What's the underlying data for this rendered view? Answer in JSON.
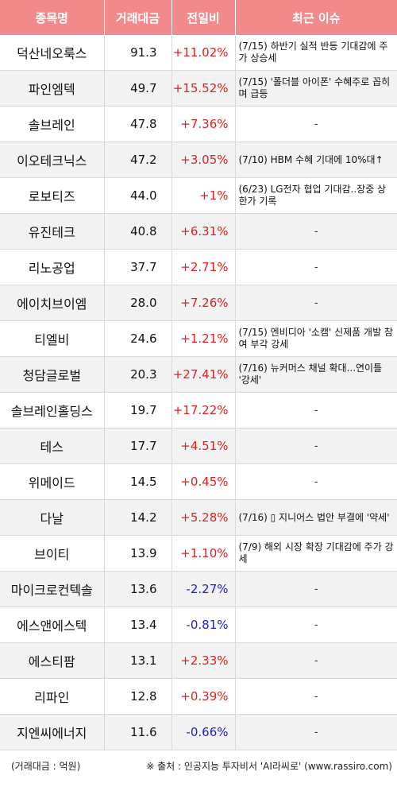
{
  "header": {
    "col_name": "종목명",
    "col_amount": "거래대금",
    "col_change": "전일비",
    "col_issue": "최근 이슈"
  },
  "rows": [
    {
      "name": "덕산네오룩스",
      "amount": "91.3",
      "change": "+11.02%",
      "dir": "up",
      "issue": "(7/15) 하반기 실적 반등 기대감에 주가 상승세"
    },
    {
      "name": "파인엠텍",
      "amount": "49.7",
      "change": "+15.52%",
      "dir": "up",
      "issue": "(7/15) '폴더블 아이폰' 수혜주로 꼽히며 급등"
    },
    {
      "name": "솔브레인",
      "amount": "47.8",
      "change": "+7.36%",
      "dir": "up",
      "issue": "-"
    },
    {
      "name": "이오테크닉스",
      "amount": "47.2",
      "change": "+3.05%",
      "dir": "up",
      "issue": "(7/10) HBM 수혜 기대에 10%대↑"
    },
    {
      "name": "로보티즈",
      "amount": "44.0",
      "change": "+1%",
      "dir": "up",
      "issue": "(6/23) LG전자 협업 기대감..장중 상한가 기록"
    },
    {
      "name": "유진테크",
      "amount": "40.8",
      "change": "+6.31%",
      "dir": "up",
      "issue": "-"
    },
    {
      "name": "리노공업",
      "amount": "37.7",
      "change": "+2.71%",
      "dir": "up",
      "issue": "-"
    },
    {
      "name": "에이치브이엠",
      "amount": "28.0",
      "change": "+7.26%",
      "dir": "up",
      "issue": "-"
    },
    {
      "name": "티엘비",
      "amount": "24.6",
      "change": "+1.21%",
      "dir": "up",
      "issue": "(7/15) 엔비디아 '소캠' 신제품 개발 참여 부각 강세"
    },
    {
      "name": "청담글로벌",
      "amount": "20.3",
      "change": "+27.41%",
      "dir": "up",
      "issue": "(7/16) 뉴커머스 채널 확대...연이틀 '강세'"
    },
    {
      "name": "솔브레인홀딩스",
      "amount": "19.7",
      "change": "+17.22%",
      "dir": "up",
      "issue": "-"
    },
    {
      "name": "테스",
      "amount": "17.7",
      "change": "+4.51%",
      "dir": "up",
      "issue": "-"
    },
    {
      "name": "위메이드",
      "amount": "14.5",
      "change": "+0.45%",
      "dir": "up",
      "issue": "-"
    },
    {
      "name": "다날",
      "amount": "14.2",
      "change": "+5.28%",
      "dir": "up",
      "issue": "(7/16) ▯ 지니어스 법안 부결에 '약세'"
    },
    {
      "name": "브이티",
      "amount": "13.9",
      "change": "+1.10%",
      "dir": "up",
      "issue": "(7/9) 해외 시장 확장 기대감에 주가 강세"
    },
    {
      "name": "마이크로컨텍솔",
      "amount": "13.6",
      "change": "-2.27%",
      "dir": "down",
      "issue": "-"
    },
    {
      "name": "에스앤에스텍",
      "amount": "13.4",
      "change": "-0.81%",
      "dir": "down",
      "issue": "-"
    },
    {
      "name": "에스티팜",
      "amount": "13.1",
      "change": "+2.33%",
      "dir": "up",
      "issue": "-"
    },
    {
      "name": "리파인",
      "amount": "12.8",
      "change": "+0.39%",
      "dir": "up",
      "issue": "-"
    },
    {
      "name": "지엔씨에너지",
      "amount": "11.6",
      "change": "-0.66%",
      "dir": "down",
      "issue": "-"
    }
  ],
  "footer": {
    "unit_note": "(거래대금 : 억원)",
    "source_note": "※ 출처 : 인공지능 투자비서 'AI라씨로' (www.rassiro.com)"
  },
  "colors": {
    "header_bg": "#f18a8a",
    "up": "#e0201f",
    "down": "#2020c8",
    "stripe": "#f2f2f2"
  }
}
